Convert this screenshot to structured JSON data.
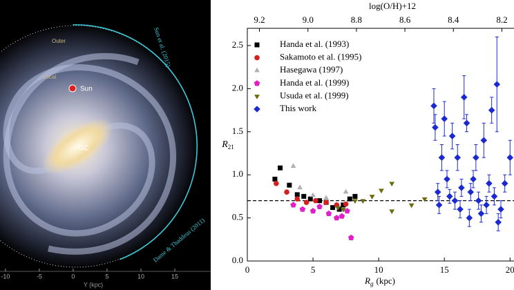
{
  "image_panel": {
    "labels": [
      "Sun",
      "GC",
      "Outer",
      "Local",
      "Sun et al. (2015)",
      "Dame & Thaddeus (2011)"
    ],
    "xlim": [
      -10.8,
      20.3
    ],
    "xticks": [
      -10,
      -5,
      0,
      5,
      10,
      15
    ],
    "xlabel": "Y (kpc)"
  },
  "chart_data": {
    "type": "scatter",
    "xlabel": {
      "main": "R",
      "sub": "g",
      "unit": "(kpc)"
    },
    "ylabel": {
      "main": "R",
      "sub": "21"
    },
    "x2label": "log(O/H)+12",
    "xlim": [
      0,
      20.3
    ],
    "xticks": [
      0,
      5,
      10,
      15,
      20
    ],
    "ylim": [
      0,
      2.7
    ],
    "yticks": [
      {
        "value": 0,
        "label": "0.0"
      },
      {
        "value": 0.5,
        "label": "0.5"
      },
      {
        "value": 1,
        "label": "1.0"
      },
      {
        "value": 1.5,
        "label": "1.5"
      },
      {
        "value": 2,
        "label": "2.0"
      },
      {
        "value": 2.5,
        "label": "2.5"
      }
    ],
    "x2lim": [
      9.25,
      8.15
    ],
    "x2ticks": [
      {
        "value": 9.2,
        "label": "9.2"
      },
      {
        "value": 9.0,
        "label": "9.0"
      },
      {
        "value": 8.8,
        "label": "8.8"
      },
      {
        "value": 8.6,
        "label": "8.6"
      },
      {
        "value": 8.4,
        "label": "8.4"
      },
      {
        "value": 8.2,
        "label": "8.2"
      }
    ],
    "reference_line": 0.7,
    "legend": "upper left",
    "series": [
      {
        "name": "Handa et al. (1993)",
        "color": "#000000",
        "marker": "square",
        "x": [
          2.1,
          2.5,
          3.2,
          3.8,
          4.3,
          4.8,
          5.5,
          6.0,
          6.5,
          7.0,
          7.3,
          7.8,
          8.2
        ],
        "values": [
          0.95,
          1.08,
          0.88,
          0.77,
          0.75,
          0.72,
          0.7,
          0.68,
          0.62,
          0.6,
          0.65,
          0.72,
          0.75
        ]
      },
      {
        "name": "Sakamoto et al. (1995)",
        "color": "#d62020",
        "marker": "circle",
        "x": [
          2.2,
          3.0,
          3.8,
          4.5,
          5.2,
          6.0,
          6.8,
          7.5
        ],
        "values": [
          0.9,
          0.8,
          0.72,
          0.68,
          0.7,
          0.68,
          0.65,
          0.66
        ]
      },
      {
        "name": "Hasegawa (1997)",
        "color": "#b0b0b8",
        "marker": "triangle",
        "x": [
          3.5,
          4.0,
          5.0,
          6.0,
          7.5
        ],
        "values": [
          1.1,
          0.85,
          0.76,
          0.73,
          0.8
        ]
      },
      {
        "name": "Handa et al. (1999)",
        "color": "#e020c8",
        "marker": "pentagon",
        "x": [
          3.5,
          4.2,
          5.0,
          5.5,
          6.2,
          6.8,
          7.2,
          7.6,
          7.9
        ],
        "values": [
          0.65,
          0.6,
          0.58,
          0.63,
          0.55,
          0.5,
          0.52,
          0.58,
          0.27
        ]
      },
      {
        "name": "Usuda et al. (1999)",
        "color": "#6b6b10",
        "marker": "triangle-down",
        "x": [
          6.9,
          7.3,
          8.2,
          8.8,
          9.5,
          10.2,
          11.0,
          11.0,
          12.5,
          13.5
        ],
        "values": [
          0.62,
          0.6,
          0.7,
          0.7,
          0.75,
          0.82,
          0.9,
          0.58,
          0.65,
          0.72
        ]
      },
      {
        "name": "This work",
        "color": "#1a2ad0",
        "marker": "diamond",
        "x": [
          14.2,
          14.3,
          14.5,
          14.6,
          14.8,
          15.0,
          15.2,
          15.4,
          15.6,
          15.8,
          16.0,
          16.2,
          16.3,
          16.5,
          16.7,
          16.9,
          17.0,
          17.2,
          17.4,
          17.6,
          17.8,
          18.0,
          18.2,
          18.4,
          18.6,
          18.8,
          19.0,
          19.1,
          19.3,
          19.6,
          20.0
        ],
        "values": [
          1.8,
          1.55,
          0.8,
          0.65,
          1.2,
          1.65,
          0.95,
          0.75,
          1.45,
          0.7,
          1.2,
          0.6,
          0.85,
          1.9,
          1.6,
          0.5,
          0.8,
          0.95,
          1.2,
          0.7,
          0.55,
          1.4,
          0.65,
          0.9,
          1.75,
          0.75,
          2.05,
          0.45,
          0.6,
          0.9,
          1.2
        ],
        "errors": [
          0.2,
          0.15,
          0.1,
          0.1,
          0.15,
          0.2,
          0.1,
          0.08,
          0.15,
          0.1,
          0.15,
          0.1,
          0.1,
          0.25,
          0.1,
          0.1,
          0.1,
          0.1,
          0.15,
          0.1,
          0.1,
          0.2,
          0.1,
          0.1,
          0.15,
          0.1,
          0.55,
          0.1,
          0.1,
          0.1,
          0.2
        ]
      }
    ]
  }
}
